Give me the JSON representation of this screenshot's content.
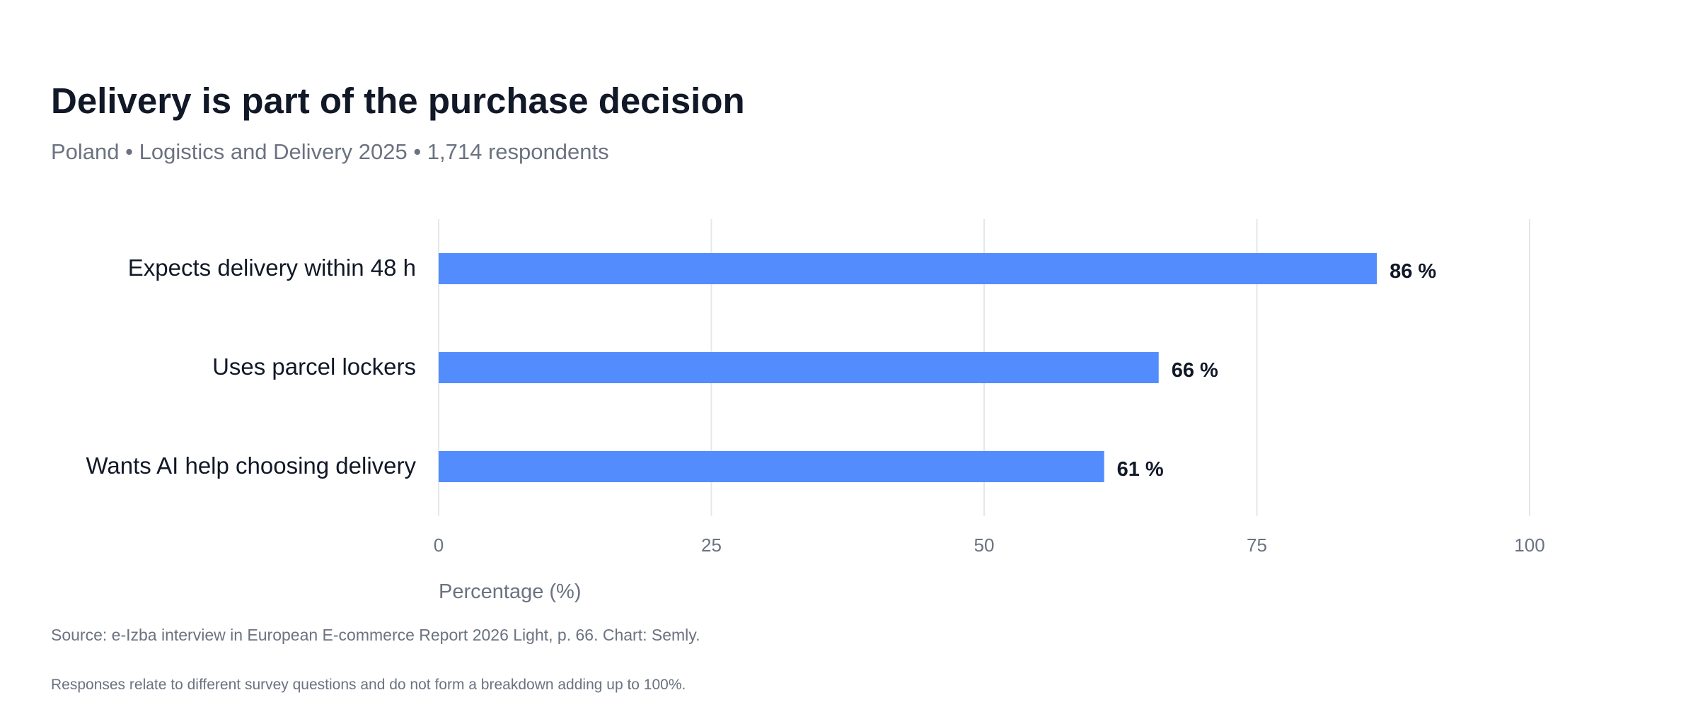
{
  "header": {
    "title": "Delivery is part of the purchase decision",
    "subtitle": "Poland • Logistics and Delivery 2025 • 1,714 respondents"
  },
  "chart_data": {
    "type": "bar",
    "orientation": "horizontal",
    "categories": [
      "Expects delivery within 48 h",
      "Uses parcel lockers",
      "Wants AI help choosing delivery"
    ],
    "values": [
      86,
      66,
      61
    ],
    "value_labels": [
      "86 %",
      "66 %",
      "61 %"
    ],
    "xlabel": "Percentage (%)",
    "xlim": [
      0,
      100
    ],
    "xticks": [
      0,
      25,
      50,
      75,
      100
    ],
    "grid": "vertical",
    "bar_color": "#538cfd"
  },
  "footer": {
    "source": "Source: e-Izba interview in European E-commerce Report 2026 Light, p. 66. Chart: Semly.",
    "note": "Responses relate to different survey questions and do not form a breakdown adding up to 100%."
  }
}
